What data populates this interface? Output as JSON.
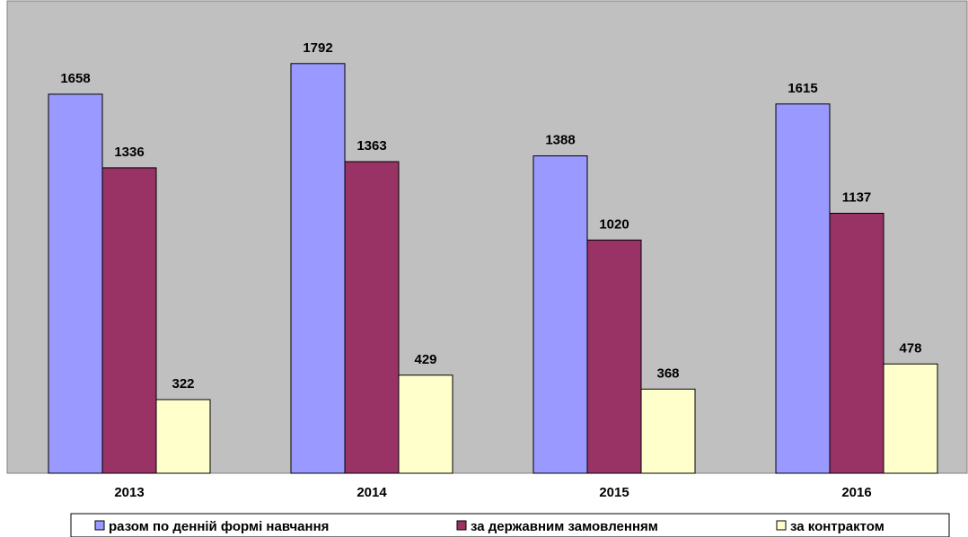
{
  "chart_data": {
    "type": "bar",
    "categories": [
      "2013",
      "2014",
      "2015",
      "2016"
    ],
    "series": [
      {
        "name": "разом по денній формі навчання",
        "values": [
          1658,
          1792,
          1388,
          1615
        ],
        "color": "#9999ff"
      },
      {
        "name": "за державним замовленням",
        "values": [
          1336,
          1363,
          1020,
          1137
        ],
        "color": "#993366"
      },
      {
        "name": "за контрактом",
        "values": [
          322,
          429,
          368,
          478
        ],
        "color": "#ffffcc"
      }
    ],
    "title": "",
    "xlabel": "",
    "ylabel": "",
    "ylim": [
      0,
      1900
    ],
    "grid": false,
    "legend": "bottom",
    "plot_background": "#c0c0c0"
  }
}
